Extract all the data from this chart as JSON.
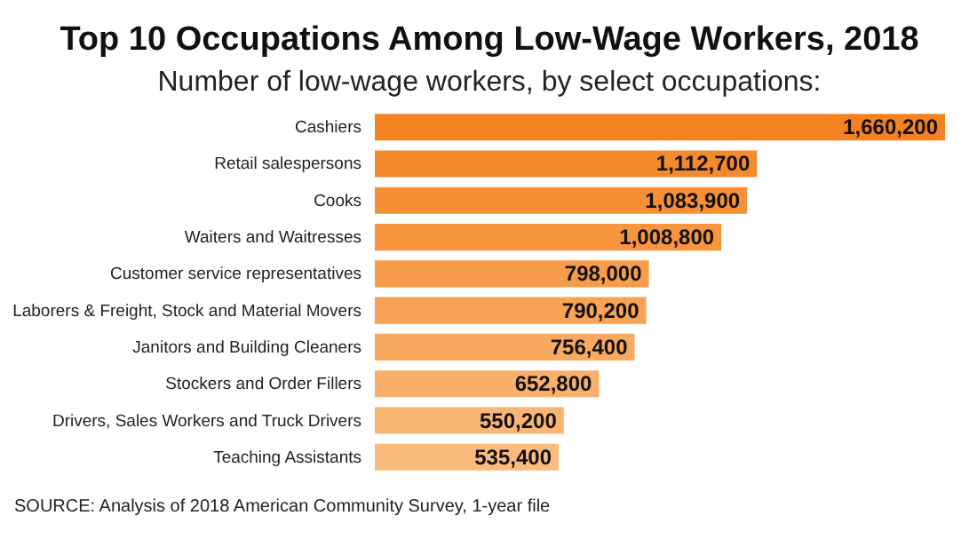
{
  "chart_data": {
    "type": "bar",
    "orientation": "horizontal",
    "title": "Top 10 Occupations Among Low-Wage Workers, 2018",
    "subtitle": "Number of low-wage workers, by select occupations:",
    "categories": [
      "Cashiers",
      "Retail salespersons",
      "Cooks",
      "Waiters and Waitresses",
      "Customer service representatives",
      "Laborers & Freight, Stock and Material Movers",
      "Janitors and Building Cleaners",
      "Stockers and Order Fillers",
      "Drivers, Sales Workers and Truck Drivers",
      "Teaching Assistants"
    ],
    "values": [
      1660200,
      1112700,
      1083900,
      1008800,
      798000,
      790200,
      756400,
      652800,
      550200,
      535400
    ],
    "colors": [
      "#f58220",
      "#f58a2c",
      "#f68f35",
      "#f6953e",
      "#f79c4a",
      "#f7a254",
      "#f8a95f",
      "#f8af6a",
      "#f9b574",
      "#f9bb7e"
    ],
    "value_labels": [
      "1,660,200",
      "1,112,700",
      "1,083,900",
      "1,008,800",
      "798,000",
      "790,200",
      "756,400",
      "652,800",
      "550,200",
      "535,400"
    ],
    "annotations": [
      "SOURCE: Analysis of 2018 American Community Survey, 1-year file"
    ]
  }
}
